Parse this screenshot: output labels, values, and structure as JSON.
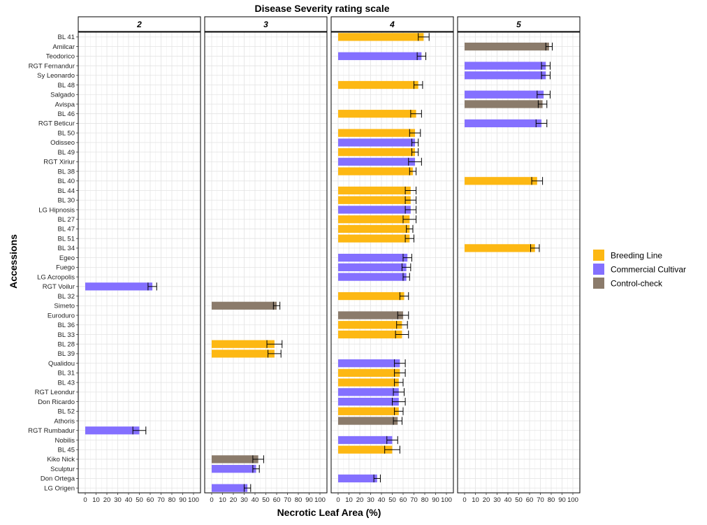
{
  "chart_data": {
    "type": "bar",
    "orientation": "horizontal",
    "title": "Disease Severity rating scale",
    "xlabel": "Necrotic Leaf Area (%)",
    "ylabel": "Accessions",
    "xlim": [
      0,
      100
    ],
    "xticks": [
      0,
      10,
      20,
      30,
      40,
      50,
      60,
      70,
      80,
      90,
      100
    ],
    "grid": true,
    "legend_position": "right",
    "facets": [
      "2",
      "3",
      "4",
      "5"
    ],
    "legend": [
      {
        "name": "Breeding Line",
        "color": "#FDB813"
      },
      {
        "name": "Commercial Cultivar",
        "color": "#8470FF"
      },
      {
        "name": "Control-check",
        "color": "#8B7B6B"
      }
    ],
    "categories": [
      "BL 41",
      "Amilcar",
      "Teodorico",
      "RGT Fernandur",
      "Sy Leonardo",
      "BL 48",
      "Salgado",
      "Avispa",
      "BL 46",
      "RGT Beticur",
      "BL 50",
      "Odisseo",
      "BL 49",
      "RGT Xiriur",
      "BL 38",
      "BL 40",
      "BL 44",
      "BL 30",
      "LG Hipnosis",
      "BL 27",
      "BL 47",
      "BL 51",
      "BL 34",
      "Egeo",
      "Fuego",
      "LG Acropolis",
      "RGT Voilur",
      "BL 32",
      "Simeto",
      "Euroduro",
      "BL 36",
      "BL 33",
      "BL 28",
      "BL 39",
      "Qualidou",
      "BL 31",
      "BL 43",
      "RGT Leondur",
      "Don Ricardo",
      "BL 52",
      "Athoris",
      "RGT Rumbadur",
      "Nobilis",
      "BL 45",
      "Kiko Nick",
      "Sculptur",
      "Don Ortega",
      "LG Origen"
    ],
    "bars": [
      {
        "accession": "BL 41",
        "panel": "4",
        "group": "Breeding Line",
        "value": 79,
        "err": 5
      },
      {
        "accession": "Amilcar",
        "panel": "5",
        "group": "Control-check",
        "value": 78,
        "err": 3
      },
      {
        "accession": "Teodorico",
        "panel": "4",
        "group": "Commercial Cultivar",
        "value": 77,
        "err": 4
      },
      {
        "accession": "RGT Fernandur",
        "panel": "5",
        "group": "Commercial Cultivar",
        "value": 75,
        "err": 4
      },
      {
        "accession": "Sy Leonardo",
        "panel": "5",
        "group": "Commercial Cultivar",
        "value": 75,
        "err": 4
      },
      {
        "accession": "BL 48",
        "panel": "4",
        "group": "Breeding Line",
        "value": 74,
        "err": 4
      },
      {
        "accession": "Salgado",
        "panel": "5",
        "group": "Commercial Cultivar",
        "value": 73,
        "err": 6
      },
      {
        "accession": "Avispa",
        "panel": "5",
        "group": "Control-check",
        "value": 72,
        "err": 4
      },
      {
        "accession": "BL 46",
        "panel": "4",
        "group": "Breeding Line",
        "value": 72,
        "err": 5
      },
      {
        "accession": "RGT Beticur",
        "panel": "5",
        "group": "Commercial Cultivar",
        "value": 71,
        "err": 5
      },
      {
        "accession": "BL 50",
        "panel": "4",
        "group": "Breeding Line",
        "value": 71,
        "err": 5
      },
      {
        "accession": "Odisseo",
        "panel": "4",
        "group": "Commercial Cultivar",
        "value": 71,
        "err": 3
      },
      {
        "accession": "BL 49",
        "panel": "4",
        "group": "Breeding Line",
        "value": 71,
        "err": 3
      },
      {
        "accession": "RGT Xiriur",
        "panel": "4",
        "group": "Commercial Cultivar",
        "value": 71,
        "err": 6
      },
      {
        "accession": "BL 38",
        "panel": "4",
        "group": "Breeding Line",
        "value": 69,
        "err": 3
      },
      {
        "accession": "BL 40",
        "panel": "5",
        "group": "Breeding Line",
        "value": 67,
        "err": 5
      },
      {
        "accession": "BL 44",
        "panel": "4",
        "group": "Breeding Line",
        "value": 67,
        "err": 5
      },
      {
        "accession": "BL 30",
        "panel": "4",
        "group": "Breeding Line",
        "value": 67,
        "err": 5
      },
      {
        "accession": "LG Hipnosis",
        "panel": "4",
        "group": "Commercial Cultivar",
        "value": 67,
        "err": 5
      },
      {
        "accession": "BL 27",
        "panel": "4",
        "group": "Breeding Line",
        "value": 66,
        "err": 6
      },
      {
        "accession": "BL 47",
        "panel": "4",
        "group": "Breeding Line",
        "value": 66,
        "err": 3
      },
      {
        "accession": "BL 51",
        "panel": "4",
        "group": "Breeding Line",
        "value": 66,
        "err": 4
      },
      {
        "accession": "BL 34",
        "panel": "5",
        "group": "Breeding Line",
        "value": 65,
        "err": 4
      },
      {
        "accession": "Egeo",
        "panel": "4",
        "group": "Commercial Cultivar",
        "value": 64,
        "err": 4
      },
      {
        "accession": "Fuego",
        "panel": "4",
        "group": "Commercial Cultivar",
        "value": 63,
        "err": 4
      },
      {
        "accession": "LG Acropolis",
        "panel": "4",
        "group": "Commercial Cultivar",
        "value": 63,
        "err": 3
      },
      {
        "accession": "RGT Voilur",
        "panel": "2",
        "group": "Commercial Cultivar",
        "value": 62,
        "err": 4
      },
      {
        "accession": "BL 32",
        "panel": "4",
        "group": "Breeding Line",
        "value": 61,
        "err": 4
      },
      {
        "accession": "Simeto",
        "panel": "3",
        "group": "Control-check",
        "value": 60,
        "err": 3
      },
      {
        "accession": "Euroduro",
        "panel": "4",
        "group": "Control-check",
        "value": 60,
        "err": 5
      },
      {
        "accession": "BL 36",
        "panel": "4",
        "group": "Breeding Line",
        "value": 59,
        "err": 5
      },
      {
        "accession": "BL 33",
        "panel": "4",
        "group": "Breeding Line",
        "value": 59,
        "err": 6
      },
      {
        "accession": "BL 28",
        "panel": "3",
        "group": "Breeding Line",
        "value": 58,
        "err": 7
      },
      {
        "accession": "BL 39",
        "panel": "3",
        "group": "Breeding Line",
        "value": 58,
        "err": 6
      },
      {
        "accession": "Qualidou",
        "panel": "4",
        "group": "Commercial Cultivar",
        "value": 57,
        "err": 5
      },
      {
        "accession": "BL 31",
        "panel": "4",
        "group": "Breeding Line",
        "value": 57,
        "err": 5
      },
      {
        "accession": "BL 43",
        "panel": "4",
        "group": "Breeding Line",
        "value": 56,
        "err": 4
      },
      {
        "accession": "RGT Leondur",
        "panel": "4",
        "group": "Commercial Cultivar",
        "value": 56,
        "err": 5
      },
      {
        "accession": "Don Ricardo",
        "panel": "4",
        "group": "Commercial Cultivar",
        "value": 56,
        "err": 6
      },
      {
        "accession": "BL 52",
        "panel": "4",
        "group": "Breeding Line",
        "value": 56,
        "err": 4
      },
      {
        "accession": "Athoris",
        "panel": "4",
        "group": "Control-check",
        "value": 55,
        "err": 4
      },
      {
        "accession": "RGT Rumbadur",
        "panel": "2",
        "group": "Commercial Cultivar",
        "value": 50,
        "err": 6
      },
      {
        "accession": "Nobilis",
        "panel": "4",
        "group": "Commercial Cultivar",
        "value": 50,
        "err": 5
      },
      {
        "accession": "BL 45",
        "panel": "4",
        "group": "Breeding Line",
        "value": 50,
        "err": 7
      },
      {
        "accession": "Kiko Nick",
        "panel": "3",
        "group": "Control-check",
        "value": 43,
        "err": 5
      },
      {
        "accession": "Sculptur",
        "panel": "3",
        "group": "Commercial Cultivar",
        "value": 41,
        "err": 3
      },
      {
        "accession": "Don Ortega",
        "panel": "4",
        "group": "Commercial Cultivar",
        "value": 36,
        "err": 3
      },
      {
        "accession": "LG Origen",
        "panel": "3",
        "group": "Commercial Cultivar",
        "value": 33,
        "err": 3
      }
    ]
  }
}
